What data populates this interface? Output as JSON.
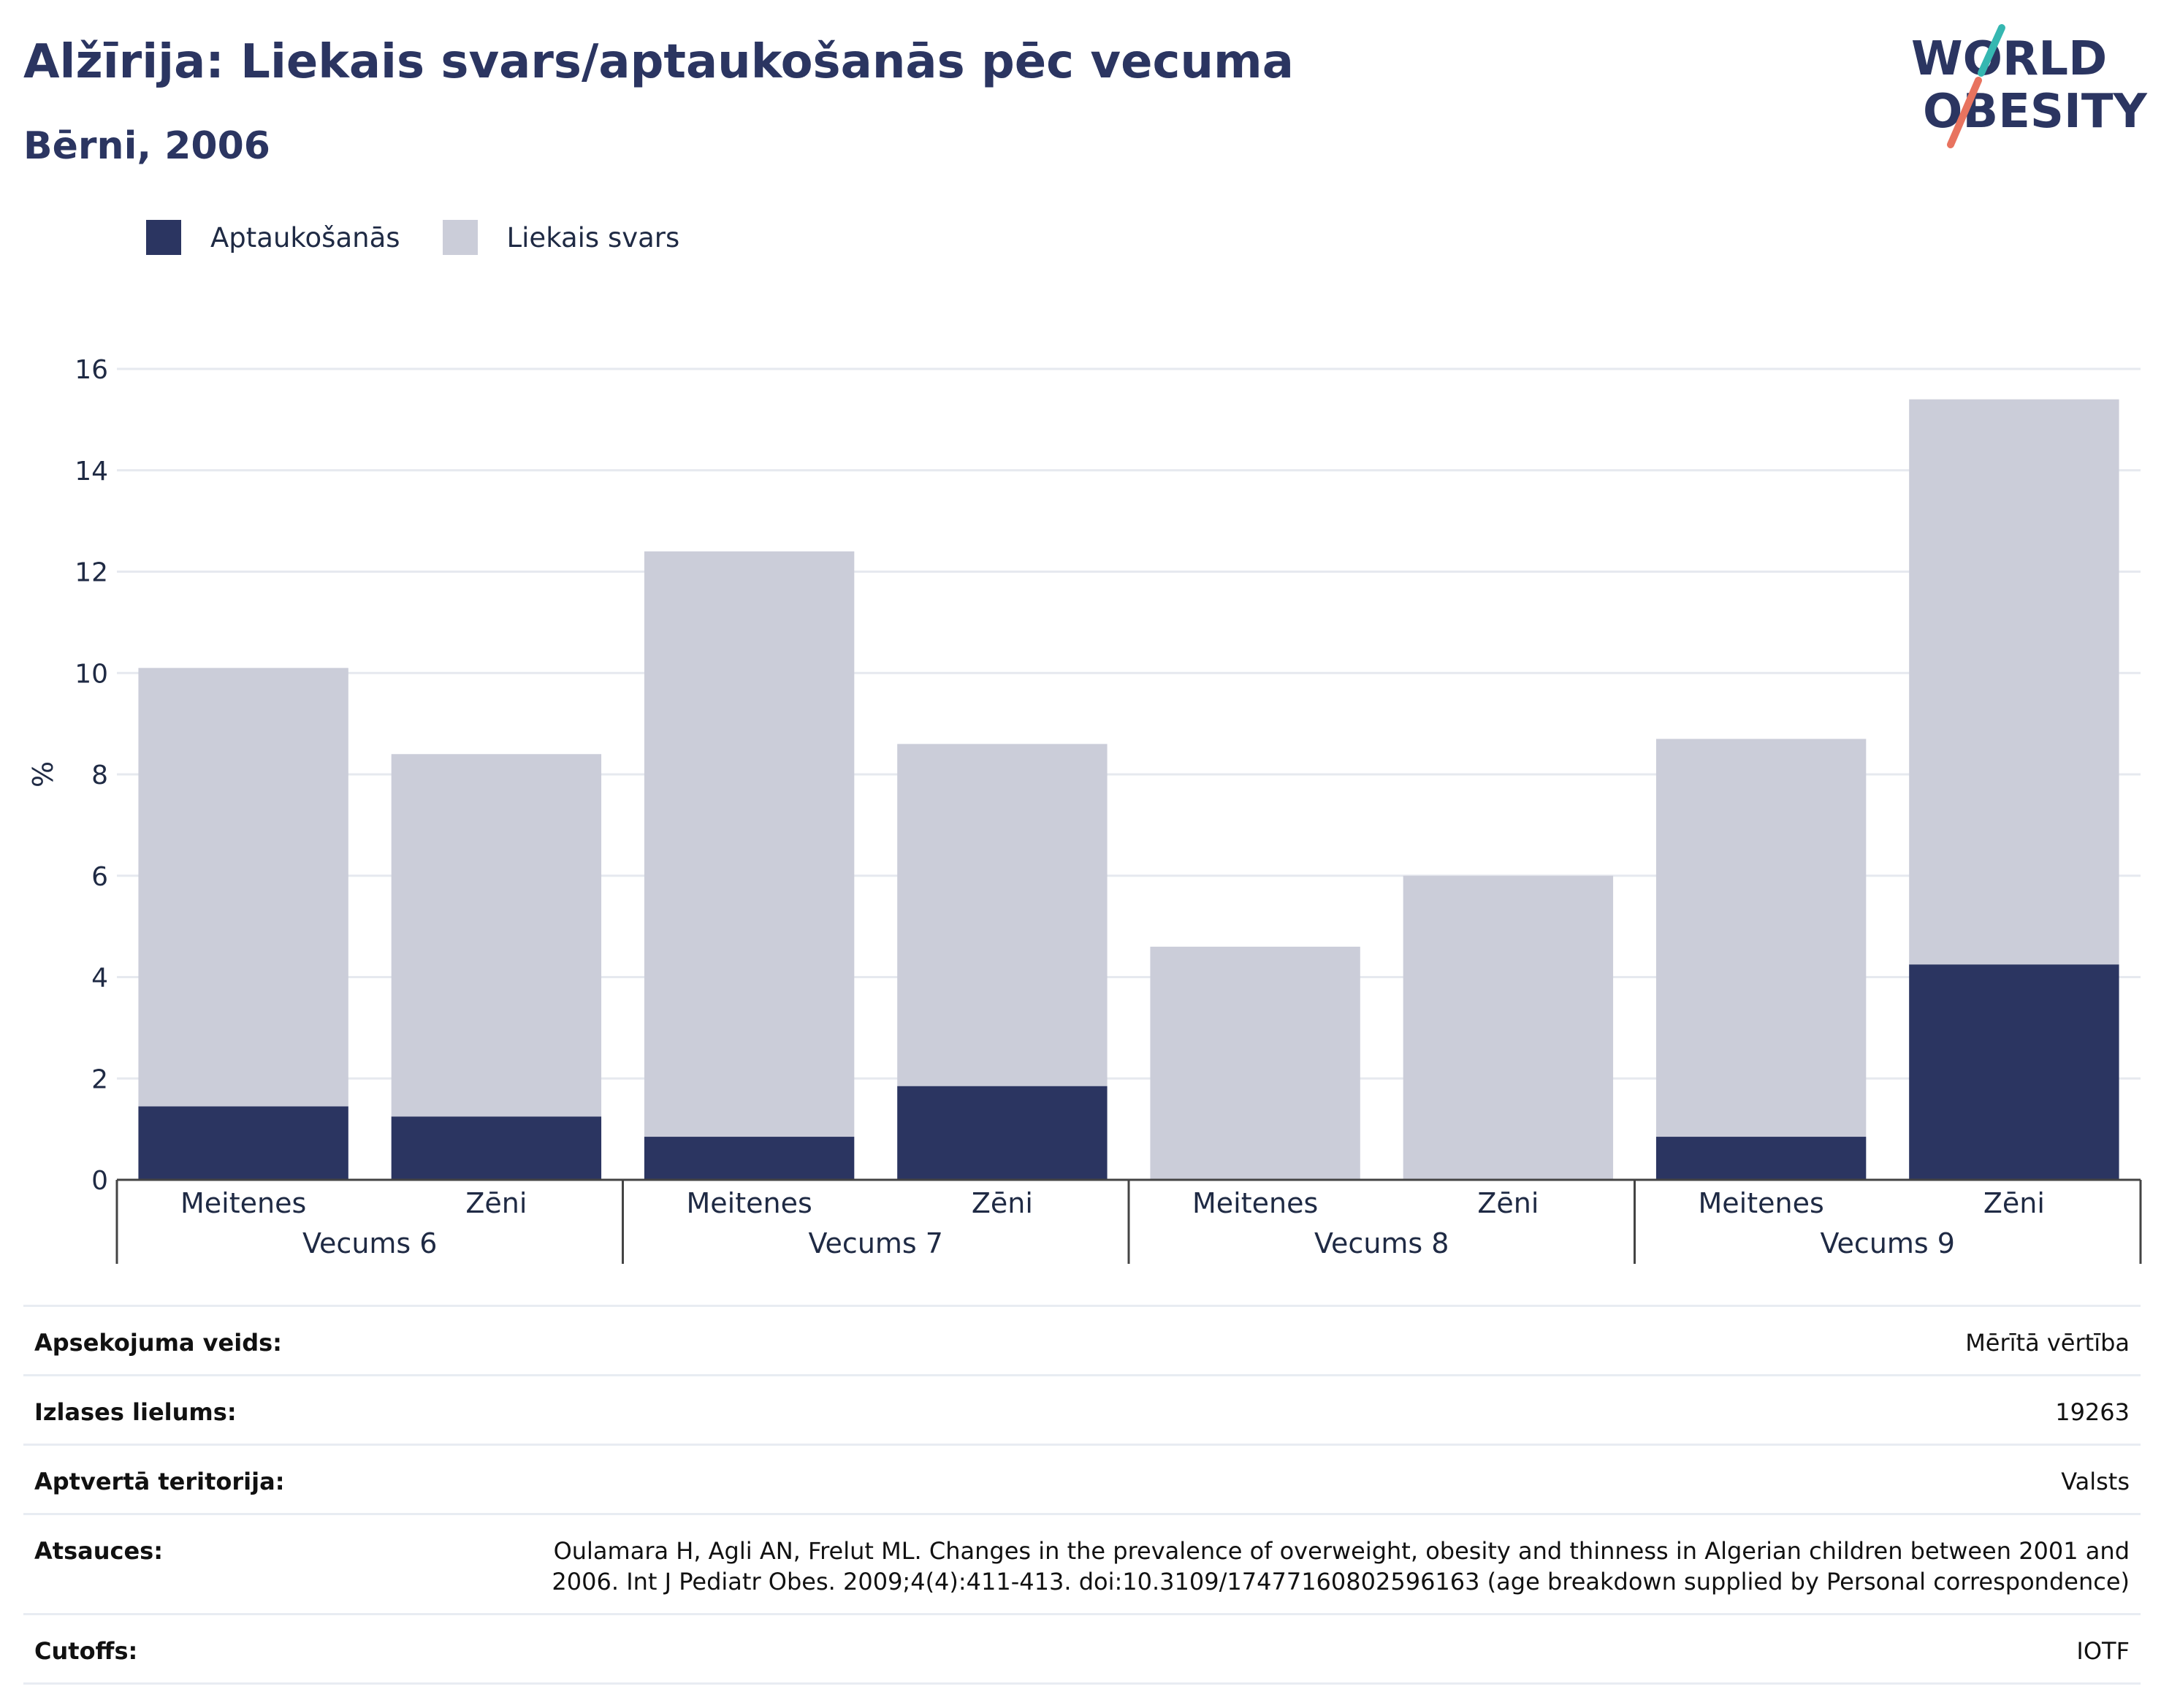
{
  "header": {
    "title": "Alžīrija: Liekais svars/aptaukošanās pēc vecuma",
    "subtitle": "Bērni, 2006"
  },
  "logo": {
    "line1": "WORLD",
    "line2": "OBESITY"
  },
  "colors": {
    "obesity": "#2b3561",
    "overweight": "#cbcdd9",
    "text": "#1f2a44",
    "grid": "#e6e9ef",
    "logo_teal": "#35b7b1",
    "logo_coral": "#e8735f"
  },
  "legend": [
    {
      "label": "Aptaukošanās",
      "color": "#2b3561"
    },
    {
      "label": "Liekais svars",
      "color": "#cbcdd9"
    }
  ],
  "chart_data": {
    "type": "bar",
    "stacked": true,
    "ylabel": "%",
    "ylim": [
      0,
      16
    ],
    "yticks": [
      0,
      2,
      4,
      6,
      8,
      10,
      12,
      14,
      16
    ],
    "grid": true,
    "legend_position": "top-left",
    "groups": [
      "Vecums 6",
      "Vecums 7",
      "Vecums 8",
      "Vecums 9"
    ],
    "categories": [
      "Meitenes",
      "Zēni",
      "Meitenes",
      "Zēni",
      "Meitenes",
      "Zēni",
      "Meitenes",
      "Zēni"
    ],
    "group_of_category": [
      "Vecums 6",
      "Vecums 6",
      "Vecums 7",
      "Vecums 7",
      "Vecums 8",
      "Vecums 8",
      "Vecums 9",
      "Vecums 9"
    ],
    "series": [
      {
        "name": "Aptaukošanās",
        "values": [
          1.45,
          1.25,
          0.85,
          1.85,
          0,
          0,
          0.85,
          4.25
        ]
      },
      {
        "name": "Liekais svars",
        "values": [
          8.65,
          7.15,
          11.55,
          6.75,
          4.6,
          6.0,
          7.85,
          11.15
        ]
      }
    ]
  },
  "info": [
    {
      "label": "Apsekojuma veids:",
      "value": "Mērītā vērtība"
    },
    {
      "label": "Izlases lielums:",
      "value": "19263"
    },
    {
      "label": "Aptvertā teritorija:",
      "value": "Valsts"
    },
    {
      "label": "Atsauces:",
      "value": "Oulamara H, Agli AN, Frelut ML. Changes in the prevalence of overweight, obesity and thinness in Algerian children between 2001 and 2006. Int J Pediatr Obes. 2009;4(4):411-413. doi:10.3109/17477160802596163 (age breakdown supplied by Personal correspondence)"
    },
    {
      "label": "Cutoffs:",
      "value": "IOTF"
    }
  ]
}
